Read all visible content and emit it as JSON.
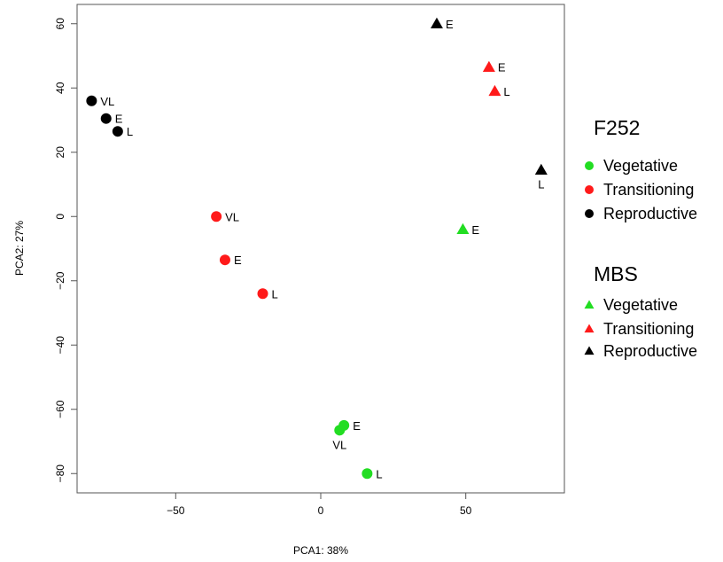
{
  "chart_data": {
    "type": "scatter",
    "title": "",
    "xlabel": "PCA1: 38%",
    "ylabel": "PCA2: 27%",
    "xlim": [
      -84,
      84
    ],
    "ylim": [
      -86,
      66
    ],
    "x_ticks": [
      -50,
      0,
      50
    ],
    "y_ticks": [
      60,
      40,
      20,
      0,
      -20,
      -40,
      -60,
      -80
    ],
    "grid": false,
    "legend_position": "right",
    "series": [
      {
        "group": "F252",
        "name": "Vegetative",
        "marker": "circle",
        "color": "#22dd22",
        "points": [
          {
            "x": 8,
            "y": -65,
            "label": "E",
            "label_pos": "right"
          },
          {
            "x": 6.5,
            "y": -66.5,
            "label": "VL",
            "label_pos": "below"
          },
          {
            "x": 16,
            "y": -80,
            "label": "L",
            "label_pos": "right"
          }
        ]
      },
      {
        "group": "F252",
        "name": "Transitioning",
        "marker": "circle",
        "color": "#ff1a1a",
        "points": [
          {
            "x": -36,
            "y": 0,
            "label": "VL",
            "label_pos": "right"
          },
          {
            "x": -33,
            "y": -13.5,
            "label": "E",
            "label_pos": "right"
          },
          {
            "x": -20,
            "y": -24,
            "label": "L",
            "label_pos": "right"
          }
        ]
      },
      {
        "group": "F252",
        "name": "Reproductive",
        "marker": "circle",
        "color": "#000000",
        "points": [
          {
            "x": -79,
            "y": 36,
            "label": "VL",
            "label_pos": "right"
          },
          {
            "x": -74,
            "y": 30.5,
            "label": "E",
            "label_pos": "right"
          },
          {
            "x": -70,
            "y": 26.5,
            "label": "L",
            "label_pos": "right"
          }
        ]
      },
      {
        "group": "MBS",
        "name": "Vegetative",
        "marker": "triangle",
        "color": "#22dd22",
        "points": [
          {
            "x": 49,
            "y": -4,
            "label": "E",
            "label_pos": "right"
          }
        ]
      },
      {
        "group": "MBS",
        "name": "Transitioning",
        "marker": "triangle",
        "color": "#ff1a1a",
        "points": [
          {
            "x": 58,
            "y": 46.5,
            "label": "E",
            "label_pos": "right"
          },
          {
            "x": 60,
            "y": 39,
            "label": "L",
            "label_pos": "right"
          }
        ]
      },
      {
        "group": "MBS",
        "name": "Reproductive",
        "marker": "triangle",
        "color": "#000000",
        "points": [
          {
            "x": 40,
            "y": 60,
            "label": "E",
            "label_pos": "right"
          },
          {
            "x": 76,
            "y": 14.5,
            "label": "L",
            "label_pos": "below"
          }
        ]
      }
    ],
    "legend": [
      {
        "title": "F252",
        "entries": [
          {
            "label": "Vegetative",
            "marker": "circle",
            "color": "#22dd22"
          },
          {
            "label": "Transitioning",
            "marker": "circle",
            "color": "#ff1a1a"
          },
          {
            "label": "Reproductive",
            "marker": "circle",
            "color": "#000000"
          }
        ]
      },
      {
        "title": "MBS",
        "entries": [
          {
            "label": "Vegetative",
            "marker": "triangle",
            "color": "#22dd22"
          },
          {
            "label": "Transitioning",
            "marker": "triangle",
            "color": "#ff1a1a"
          },
          {
            "label": "Reproductive",
            "marker": "triangle",
            "color": "#000000"
          }
        ]
      }
    ]
  }
}
